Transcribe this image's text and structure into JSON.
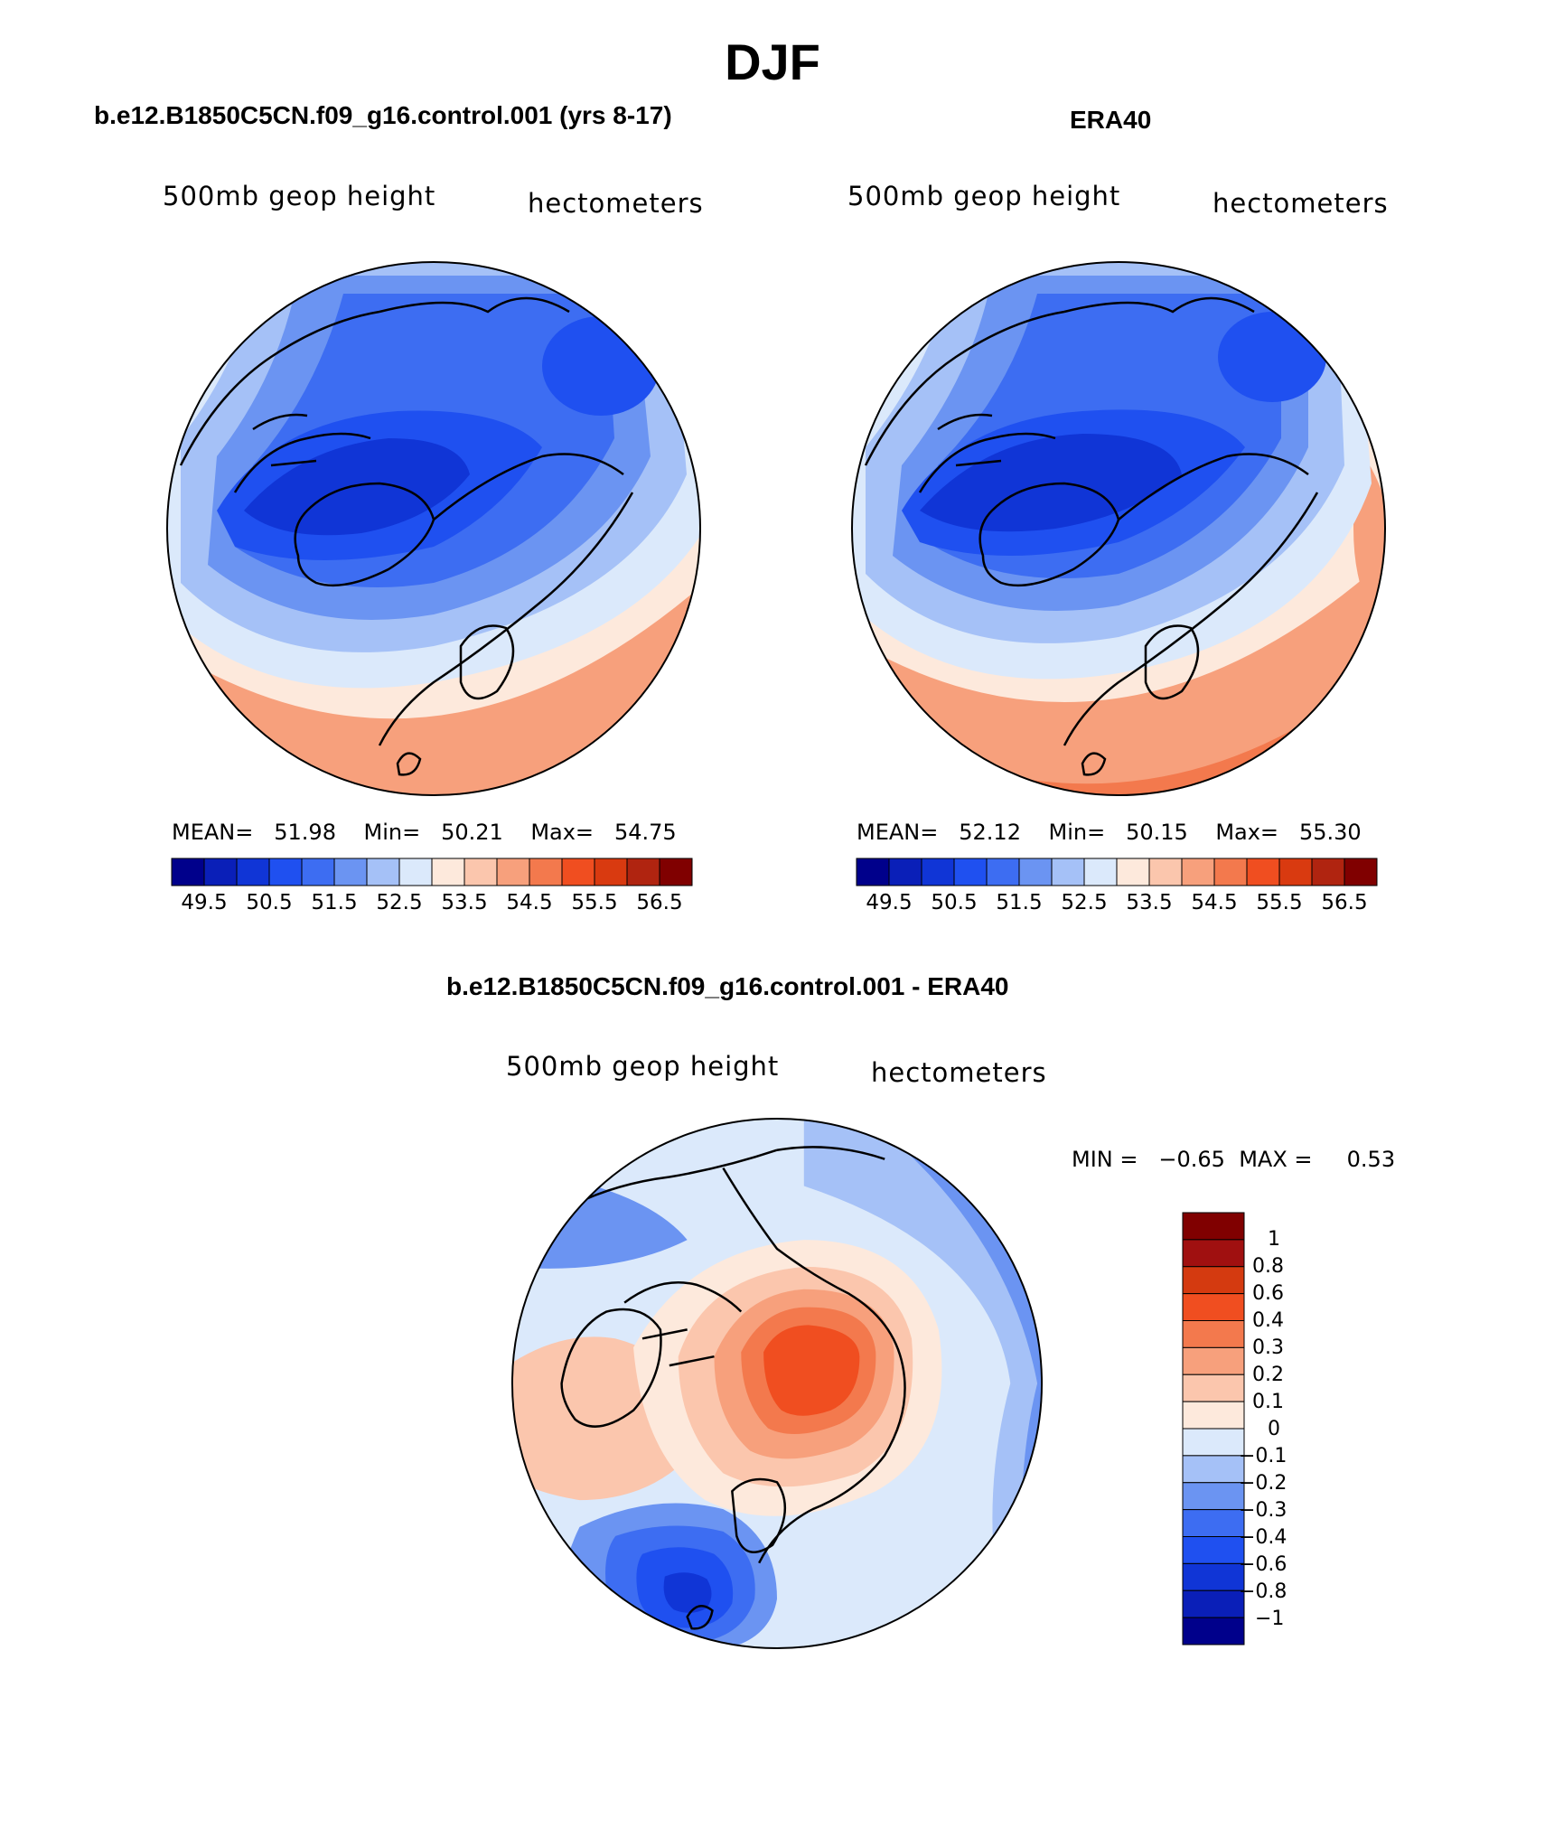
{
  "figure": {
    "title": "DJF"
  },
  "panels": [
    {
      "title": "b.e12.B1850C5CN.f09_g16.control.001 (yrs 8-17)",
      "field": "500mb geop height",
      "units": "hectometers",
      "mean_label": "MEAN=",
      "mean": "51.98",
      "min_label": "Min=",
      "min": "50.21",
      "max_label": "Max=",
      "max": "54.75"
    },
    {
      "title": "ERA40",
      "field": "500mb geop height",
      "units": "hectometers",
      "mean_label": "MEAN=",
      "mean": "52.12",
      "min_label": "Min=",
      "min": "50.15",
      "max_label": "Max=",
      "max": "55.30"
    }
  ],
  "difference": {
    "title": "b.e12.B1850C5CN.f09_g16.control.001 - ERA40",
    "field": "500mb geop height",
    "units": "hectometers",
    "min_label": "MIN =",
    "min": "−0.65",
    "max_label": "MAX =",
    "max": "0.53"
  },
  "colorbars": {
    "absolute": {
      "colors": [
        "#00008b",
        "#0a1fb8",
        "#1035d6",
        "#1f50f0",
        "#3d6df2",
        "#6b94f2",
        "#a5c1f7",
        "#dbe9fb",
        "#fde9dc",
        "#fbc6ad",
        "#f7a07c",
        "#f3794d",
        "#f04e20",
        "#d93a10",
        "#b02410",
        "#800000"
      ],
      "tick_labels": [
        "49.5",
        "50.5",
        "51.5",
        "52.5",
        "53.5",
        "54.5",
        "55.5",
        "56.5"
      ]
    },
    "difference": {
      "colors": [
        "#800000",
        "#a01010",
        "#d43a10",
        "#f04e20",
        "#f3794d",
        "#f7a07c",
        "#fbc6ad",
        "#fde9dc",
        "#dbe9fb",
        "#a5c1f7",
        "#6b94f2",
        "#3d6df2",
        "#1f50f0",
        "#1035d6",
        "#0a1fb8",
        "#00008b"
      ],
      "tick_labels": [
        "1",
        "0.8",
        "0.6",
        "0.4",
        "0.3",
        "0.2",
        "0.1",
        "0",
        "−0.1",
        "−0.2",
        "−0.3",
        "−0.4",
        "−0.6",
        "−0.8",
        "−1"
      ]
    }
  }
}
